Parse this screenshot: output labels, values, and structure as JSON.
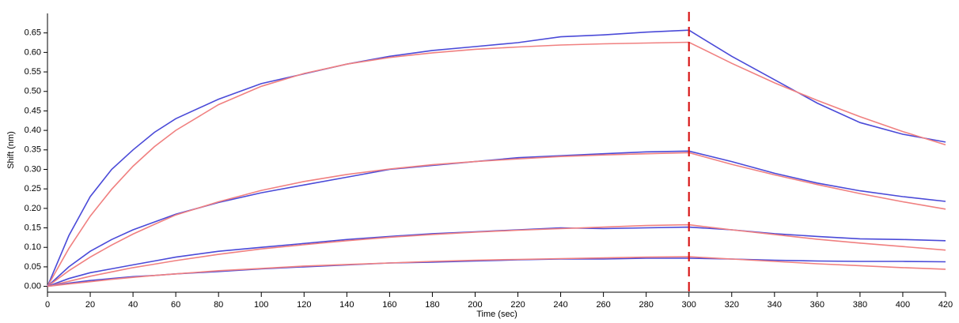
{
  "chart_data": {
    "type": "line",
    "x_label": "Time (sec)",
    "y_label": "Shift (nm)",
    "x": [
      0,
      10,
      20,
      30,
      40,
      50,
      60,
      80,
      100,
      120,
      140,
      160,
      180,
      200,
      220,
      240,
      260,
      280,
      300,
      320,
      340,
      360,
      380,
      400,
      420
    ],
    "series": [
      {
        "color": "#4a4ad8",
        "values": [
          0,
          0.13,
          0.23,
          0.3,
          0.35,
          0.395,
          0.43,
          0.48,
          0.52,
          0.545,
          0.57,
          0.59,
          0.605,
          0.615,
          0.625,
          0.64,
          0.645,
          0.652,
          0.657,
          0.59,
          0.53,
          0.47,
          0.42,
          0.39,
          0.37
        ]
      },
      {
        "color": "#f08080",
        "values": [
          0,
          0.097,
          0.18,
          0.249,
          0.308,
          0.358,
          0.4,
          0.466,
          0.513,
          0.546,
          0.57,
          0.587,
          0.599,
          0.608,
          0.614,
          0.619,
          0.622,
          0.624,
          0.626,
          0.572,
          0.522,
          0.477,
          0.435,
          0.397,
          0.363
        ]
      },
      {
        "color": "#4a4ad8",
        "values": [
          0,
          0.05,
          0.09,
          0.12,
          0.145,
          0.165,
          0.185,
          0.215,
          0.24,
          0.26,
          0.28,
          0.3,
          0.31,
          0.32,
          0.33,
          0.335,
          0.34,
          0.345,
          0.347,
          0.32,
          0.29,
          0.265,
          0.245,
          0.23,
          0.218
        ]
      },
      {
        "color": "#f08080",
        "values": [
          0,
          0.04,
          0.075,
          0.106,
          0.134,
          0.159,
          0.183,
          0.217,
          0.246,
          0.269,
          0.287,
          0.301,
          0.312,
          0.32,
          0.327,
          0.333,
          0.337,
          0.34,
          0.343,
          0.313,
          0.286,
          0.261,
          0.238,
          0.217,
          0.198
        ]
      },
      {
        "color": "#4a4ad8",
        "values": [
          0,
          0.02,
          0.035,
          0.045,
          0.055,
          0.065,
          0.075,
          0.09,
          0.1,
          0.11,
          0.12,
          0.128,
          0.135,
          0.14,
          0.145,
          0.15,
          0.148,
          0.15,
          0.152,
          0.145,
          0.135,
          0.128,
          0.122,
          0.12,
          0.117
        ]
      },
      {
        "color": "#f08080",
        "values": [
          0,
          0.013,
          0.026,
          0.037,
          0.048,
          0.057,
          0.066,
          0.082,
          0.096,
          0.107,
          0.117,
          0.126,
          0.133,
          0.139,
          0.144,
          0.148,
          0.152,
          0.156,
          0.158,
          0.145,
          0.133,
          0.121,
          0.111,
          0.102,
          0.093
        ]
      },
      {
        "color": "#4a4ad8",
        "values": [
          0,
          0.008,
          0.015,
          0.02,
          0.025,
          0.028,
          0.032,
          0.038,
          0.045,
          0.05,
          0.055,
          0.06,
          0.062,
          0.065,
          0.068,
          0.07,
          0.07,
          0.072,
          0.072,
          0.07,
          0.067,
          0.065,
          0.064,
          0.064,
          0.063
        ]
      },
      {
        "color": "#f08080",
        "values": [
          0,
          0.006,
          0.012,
          0.018,
          0.023,
          0.028,
          0.032,
          0.04,
          0.046,
          0.052,
          0.056,
          0.06,
          0.064,
          0.067,
          0.069,
          0.071,
          0.073,
          0.075,
          0.076,
          0.07,
          0.064,
          0.058,
          0.053,
          0.048,
          0.044
        ]
      }
    ],
    "xlim": [
      0,
      420
    ],
    "xticks": [
      0,
      20,
      40,
      60,
      80,
      100,
      120,
      140,
      160,
      180,
      200,
      220,
      240,
      260,
      280,
      300,
      320,
      340,
      360,
      380,
      400,
      420
    ],
    "ylim": [
      -0.015,
      0.7
    ],
    "yticks": [
      {
        "value": 0,
        "label": "0.00"
      },
      0.05,
      {
        "value": 0.1,
        "label": "0.10"
      },
      0.15,
      {
        "value": 0.2,
        "label": "0.20"
      },
      0.25,
      {
        "value": 0.3,
        "label": "0.30"
      },
      0.35,
      {
        "value": 0.4,
        "label": "0.40"
      },
      0.45,
      {
        "value": 0.5,
        "label": "0.50"
      },
      0.55,
      {
        "value": 0.6,
        "label": "0.60"
      },
      0.65
    ],
    "vlines": [
      {
        "x": 300,
        "color": "#d81818"
      }
    ],
    "grid": false
  }
}
